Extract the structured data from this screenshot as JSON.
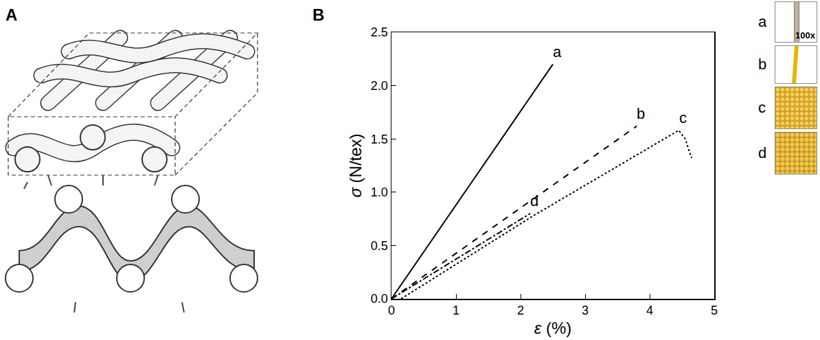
{
  "figure": {
    "panel_letters": [
      "A",
      "B"
    ],
    "photos": [
      {
        "label": "a",
        "magnification": "100x"
      },
      {
        "label": "b"
      },
      {
        "label": "c"
      },
      {
        "label": "d"
      }
    ]
  },
  "chart_data": {
    "type": "line",
    "x_label": "ε (%)",
    "y_label": "σ (N/tex)",
    "xlim": [
      0,
      5
    ],
    "xticks": [
      0,
      1,
      2,
      3,
      4,
      5
    ],
    "ylim": [
      0,
      2.5
    ],
    "yticks": [
      {
        "value": 0,
        "label": "0.0"
      },
      0.5,
      {
        "value": 1,
        "label": "1.0"
      },
      1.5,
      {
        "value": 2,
        "label": "2.0"
      },
      2.5
    ],
    "grid": false,
    "series": [
      {
        "name": "a",
        "color": "#000000",
        "line_style": "solid",
        "x": [
          0,
          2.5
        ],
        "values": [
          0,
          2.2
        ]
      },
      {
        "name": "b",
        "color": "#000000",
        "line_style": "dash",
        "x": [
          0,
          3.8
        ],
        "values": [
          0,
          1.62
        ]
      },
      {
        "name": "c",
        "color": "#000000",
        "line_style": "dot",
        "x": [
          0.15,
          2.2,
          4.45,
          4.55,
          4.65
        ],
        "values": [
          0,
          0.78,
          1.58,
          1.5,
          1.32
        ]
      },
      {
        "name": "d",
        "color": "#000000",
        "line_style": "dashdot",
        "x": [
          0,
          2.15
        ],
        "values": [
          0,
          0.8
        ]
      }
    ]
  }
}
